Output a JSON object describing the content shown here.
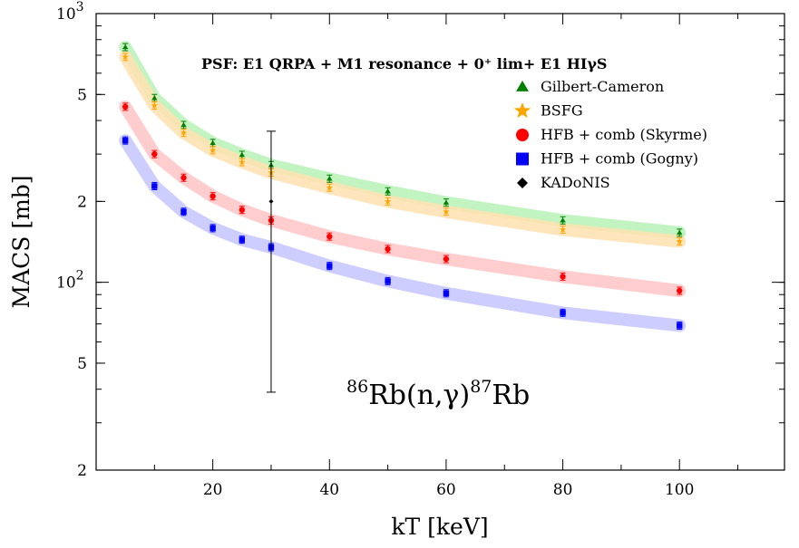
{
  "chart_data": {
    "type": "scatter",
    "xlabel": "kT [keV]",
    "ylabel": "MACS [mb]",
    "xlim": [
      0,
      118
    ],
    "ylim": [
      20,
      1000
    ],
    "yscale": "log",
    "x_ticks": [
      20,
      40,
      60,
      80,
      100
    ],
    "x_tick_labels": [
      "20",
      "40",
      "60",
      "80",
      "100"
    ],
    "y_ticks": [
      20,
      50,
      100,
      200,
      500,
      1000
    ],
    "y_tick_labels": [
      {
        "value": 20,
        "mant": "2",
        "exp": ""
      },
      {
        "value": 50,
        "mant": "5",
        "exp": ""
      },
      {
        "value": 100,
        "mant": "10",
        "exp": "2"
      },
      {
        "value": 200,
        "mant": "2",
        "exp": ""
      },
      {
        "value": 500,
        "mant": "5",
        "exp": ""
      },
      {
        "value": 1000,
        "mant": "10",
        "exp": "3"
      }
    ],
    "annotation": "PSF: E1 QRPA + M1 resonance + 0⁺ lim+ E1 HIγS",
    "reaction_label": {
      "sup1": "86",
      "mid": "Rb(n,γ)",
      "sup2": "87",
      "end": "Rb"
    },
    "legend_position": "top-right",
    "grid": false,
    "series": [
      {
        "name": "Gilbert-Cameron",
        "marker": "triangle",
        "color": "#008000",
        "band_color": "#b7f2b7",
        "x": [
          5,
          10,
          15,
          20,
          25,
          30,
          40,
          50,
          60,
          80,
          100
        ],
        "y": [
          750,
          485,
          385,
          330,
          298,
          273,
          243,
          218,
          198,
          170,
          153
        ]
      },
      {
        "name": "BSFG",
        "marker": "star",
        "color": "#ffa500",
        "band_color": "#ffe0b0",
        "x": [
          5,
          10,
          15,
          20,
          25,
          30,
          40,
          50,
          60,
          80,
          100
        ],
        "y": [
          690,
          455,
          360,
          310,
          280,
          256,
          225,
          200,
          183,
          157,
          142
        ]
      },
      {
        "name": "HFB + comb (Skyrme)",
        "marker": "circle",
        "color": "#ff0000",
        "band_color": "#ffc4c4",
        "x": [
          5,
          10,
          15,
          20,
          25,
          30,
          40,
          50,
          60,
          80,
          100
        ],
        "y": [
          450,
          300,
          245,
          209,
          186,
          170,
          148,
          133,
          122,
          105,
          93
        ]
      },
      {
        "name": "HFB + comb (Gogny)",
        "marker": "square",
        "color": "#0000ff",
        "band_color": "#c4c4ff",
        "x": [
          5,
          10,
          15,
          20,
          25,
          30,
          40,
          50,
          60,
          80,
          100
        ],
        "y": [
          337,
          228,
          183,
          159,
          144,
          135,
          115,
          101,
          91,
          77,
          69
        ]
      },
      {
        "name": "KADoNIS",
        "marker": "diamond",
        "color": "#000000",
        "x": [
          30
        ],
        "y": [
          200
        ],
        "y_err_low": [
          39
        ],
        "y_err_high": [
          365
        ]
      }
    ]
  }
}
